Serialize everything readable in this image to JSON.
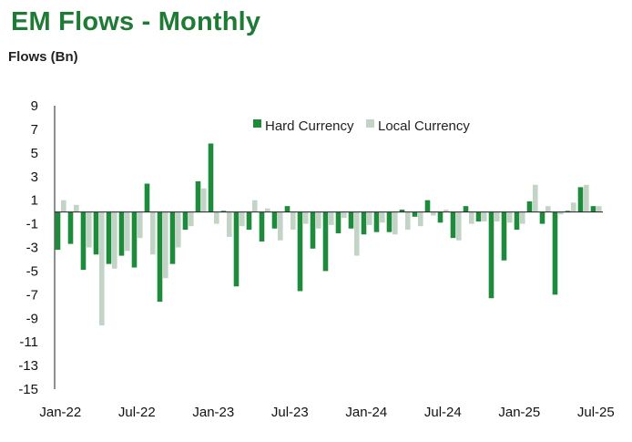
{
  "chart_data": {
    "type": "bar",
    "title": "EM Flows - Monthly",
    "ylabel": "Flows (Bn)",
    "xlabel": "",
    "ylim": [
      -15,
      9
    ],
    "yticks": [
      9,
      7,
      5,
      3,
      1,
      -1,
      -3,
      -5,
      -7,
      -9,
      -11,
      -13,
      -15
    ],
    "categories": [
      "Jan-22",
      "Feb-22",
      "Mar-22",
      "Apr-22",
      "May-22",
      "Jun-22",
      "Jul-22",
      "Aug-22",
      "Sep-22",
      "Oct-22",
      "Nov-22",
      "Dec-22",
      "Jan-23",
      "Feb-23",
      "Mar-23",
      "Apr-23",
      "May-23",
      "Jun-23",
      "Jul-23",
      "Aug-23",
      "Sep-23",
      "Oct-23",
      "Nov-23",
      "Dec-23",
      "Jan-24",
      "Feb-24",
      "Mar-24",
      "Apr-24",
      "May-24",
      "Jun-24",
      "Jul-24",
      "Aug-24",
      "Sep-24",
      "Oct-24",
      "Nov-24",
      "Dec-24",
      "Jan-25",
      "Feb-25",
      "Mar-25",
      "Apr-25",
      "May-25",
      "Jun-25",
      "Jul-25"
    ],
    "x_tick_labels": [
      "Jan-22",
      "Jul-22",
      "Jan-23",
      "Jul-23",
      "Jan-24",
      "Jul-24",
      "Jan-25",
      "Jul-25"
    ],
    "x_tick_positions": [
      0,
      6,
      12,
      18,
      24,
      30,
      36,
      42
    ],
    "legend": "top-center",
    "series": [
      {
        "name": "Hard Currency",
        "color": "#1e8a3c",
        "values": [
          -3.2,
          -2.7,
          -4.9,
          -3.6,
          -4.4,
          -3.7,
          -4.7,
          2.4,
          -7.6,
          -4.4,
          -1.5,
          2.6,
          5.8,
          0.1,
          -6.3,
          -1.5,
          -2.5,
          -1.4,
          0.5,
          -6.7,
          -3.1,
          -5.0,
          -1.8,
          -1.4,
          -1.9,
          -1.7,
          -1.7,
          0.2,
          -0.4,
          1.0,
          -0.9,
          -2.2,
          0.5,
          -0.8,
          -7.3,
          -4.1,
          -1.5,
          0.9,
          -1.0,
          -7.0,
          0.1,
          2.1,
          0.5
        ]
      },
      {
        "name": "Local Currency",
        "color": "#c2d4c5",
        "values": [
          1.0,
          0.6,
          -3.0,
          -9.6,
          -4.8,
          -3.3,
          -2.2,
          -3.6,
          -5.6,
          -3.0,
          -1.2,
          2.0,
          -1.0,
          -2.1,
          -1.2,
          1.0,
          0.3,
          -2.4,
          -1.5,
          -1.0,
          -1.4,
          -1.1,
          -0.5,
          -3.7,
          -1.1,
          -0.9,
          -1.9,
          -1.5,
          -1.2,
          -0.3,
          0.2,
          -2.4,
          -1.0,
          -0.8,
          -0.8,
          -0.9,
          -1.0,
          2.3,
          0.5,
          -0.2,
          0.8,
          2.3,
          0.5
        ]
      }
    ]
  }
}
